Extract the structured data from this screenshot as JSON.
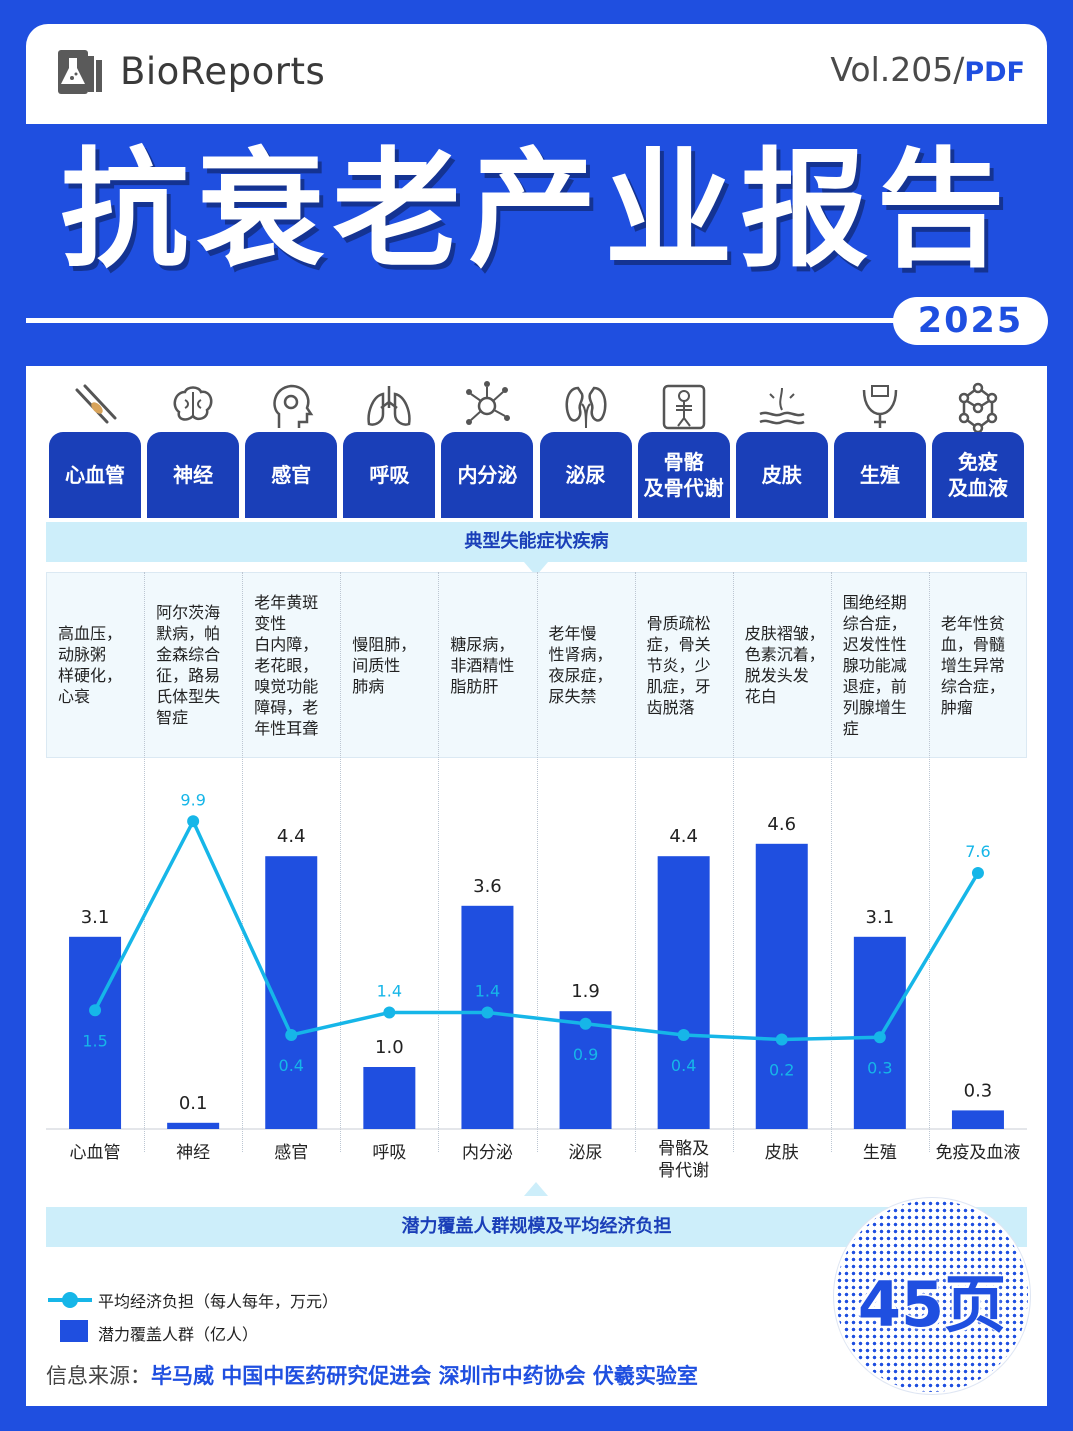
{
  "header": {
    "brand": "BioReports",
    "vol_label": "Vol.205/",
    "vol_format": "PDF",
    "title": "抗衰老产业报告",
    "year": "2025"
  },
  "categories": [
    {
      "tab": "心血管",
      "icon": "blood-vessel-icon",
      "diseases": "高血压，\n动脉粥\n样硬化，\n心衰"
    },
    {
      "tab": "神经",
      "icon": "brain-icon",
      "diseases": "阿尔茨海\n默病，帕\n金森综合\n征，路易\n氏体型失\n智症"
    },
    {
      "tab": "感官",
      "icon": "head-gear-icon",
      "diseases": "老年黄斑\n变性\n白内障，\n老花眼，\n嗅觉功能\n障碍，老\n年性耳聋"
    },
    {
      "tab": "呼吸",
      "icon": "lungs-icon",
      "diseases": "慢阻肺，\n间质性\n肺病"
    },
    {
      "tab": "内分泌",
      "icon": "molecule-network-icon",
      "diseases": "糖尿病，\n非酒精性\n脂肪肝"
    },
    {
      "tab": "泌尿",
      "icon": "kidneys-icon",
      "diseases": "老年慢\n性肾病，\n夜尿症，\n尿失禁"
    },
    {
      "tab": "骨骼\n及骨代谢",
      "icon": "skeleton-icon",
      "diseases": "骨质疏松\n症，骨关\n节炎，少\n肌症，牙\n齿脱落"
    },
    {
      "tab": "皮肤",
      "icon": "skin-icon",
      "diseases": "皮肤褶皱，\n色素沉着，\n脱发头发\n花白"
    },
    {
      "tab": "生殖",
      "icon": "reproductive-icon",
      "diseases": "围绝经期\n综合症，\n迟发性性\n腺功能减\n退症，前\n列腺增生\n症"
    },
    {
      "tab": "免疫\n及血液",
      "icon": "hexagon-cells-icon",
      "diseases": "老年性贫\n血，骨髓\n增生异常\n综合症，\n肿瘤"
    }
  ],
  "band_diseases": "典型失能症状疾病",
  "band_chart": "潜力覆盖人群规模及平均经济负担",
  "chart_data": {
    "type": "bar",
    "categories": [
      "心血管",
      "神经",
      "感官",
      "呼吸",
      "内分泌",
      "泌尿",
      "骨骼及\n骨代谢",
      "皮肤",
      "生殖",
      "免疫及血液"
    ],
    "series": [
      {
        "name": "潜力覆盖人群（亿人）",
        "type": "bar",
        "values": [
          3.1,
          0.1,
          4.4,
          1.0,
          3.6,
          1.9,
          4.4,
          4.6,
          3.1,
          0.3
        ],
        "color": "#1f4fe0"
      },
      {
        "name": "平均经济负担（每人每年，万元）",
        "type": "line",
        "values": [
          1.5,
          9.9,
          0.4,
          1.4,
          1.4,
          0.9,
          0.4,
          0.2,
          0.3,
          7.6
        ],
        "color": "#16b6e8"
      }
    ]
  },
  "legend": {
    "line_label": "平均经济负担（每人每年，万元）",
    "bar_label": "潜力覆盖人群（亿人）"
  },
  "badge": "45页",
  "source": {
    "label": "信息来源：",
    "orgs": "毕马威 中国中医药研究促进会 深圳市中药协会 伏羲实验室"
  },
  "colors": {
    "brand_blue": "#1f4fe0",
    "tab_blue": "#1a3fb8",
    "line_cyan": "#16b6e8",
    "band_bg": "#cdeefa"
  }
}
